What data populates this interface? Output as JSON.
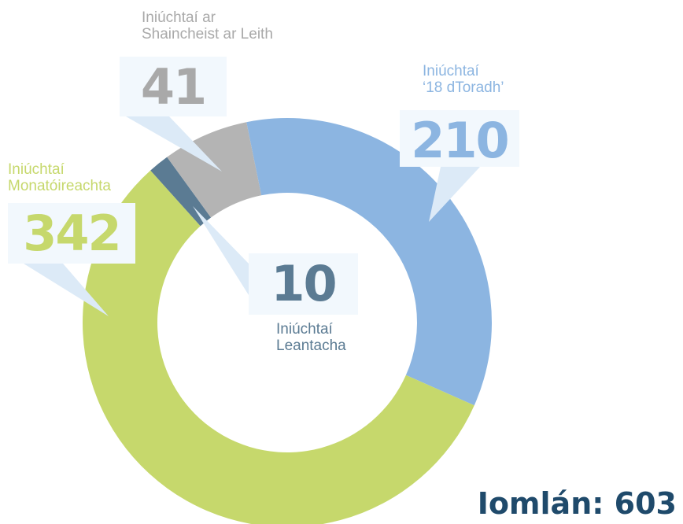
{
  "chart_data": {
    "type": "donut",
    "categories": [
      "Iniúchtaí\n‘18 dToradh’",
      "Iniúchtaí\nMonatóireachta",
      "Iniúchtaí\nLeantacha",
      "Iniúchtaí ar\nShaincheist ar Leith"
    ],
    "values": [
      210,
      342,
      10,
      41
    ],
    "colors": [
      "#8cb5e1",
      "#c6d86c",
      "#5b7b93",
      "#b4b4b4"
    ],
    "total": "Iomlán: 603"
  }
}
